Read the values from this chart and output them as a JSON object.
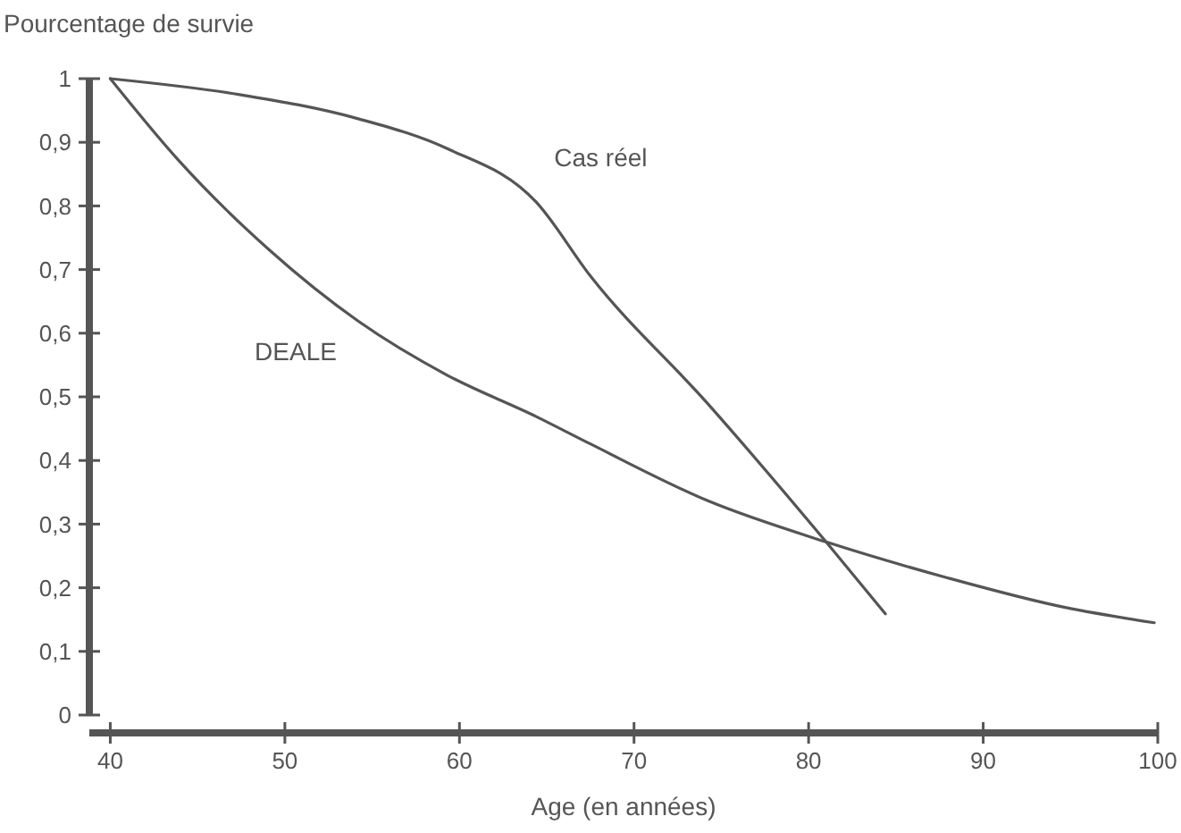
{
  "chart_data": {
    "type": "line",
    "ylabel": "Pourcentage de survie",
    "xlabel": "Age (en années)",
    "xlim": [
      38.8,
      100
    ],
    "xticks": [
      40,
      50,
      60,
      70,
      80,
      90,
      100
    ],
    "ylim": [
      0,
      1
    ],
    "yticks": [
      0,
      {
        "value": 0.1,
        "label": "0,1"
      },
      {
        "value": 0.2,
        "label": "0,2"
      },
      {
        "value": 0.3,
        "label": "0,3"
      },
      {
        "value": 0.4,
        "label": "0,4"
      },
      {
        "value": 0.5,
        "label": "0,5"
      },
      {
        "value": 0.6,
        "label": "0,6"
      },
      {
        "value": 0.7,
        "label": "0,7"
      },
      {
        "value": 0.8,
        "label": "0,8"
      },
      {
        "value": 0.9,
        "label": "0,9"
      },
      1
    ],
    "grid": false,
    "legend": false,
    "marker": "none",
    "line_style": "solid",
    "series": [
      {
        "name": "Cas réel",
        "color": "#555555",
        "x": [
          40,
          47.4,
          54.2,
          59.3,
          64.4,
          67.5,
          74.2,
          81.0,
          84.4
        ],
        "values": [
          1,
          0.975,
          0.937,
          0.89,
          0.806,
          0.69,
          0.49,
          0.272,
          0.159
        ]
      },
      {
        "name": "DEALE",
        "color": "#555555",
        "x": [
          40,
          43.9,
          49.1,
          54.2,
          59.3,
          64.4,
          67.5,
          74.2,
          81.0,
          87.9,
          94.7,
          99.8
        ],
        "values": [
          1,
          0.872,
          0.731,
          0.619,
          0.534,
          0.469,
          0.426,
          0.337,
          0.272,
          0.216,
          0.169,
          0.145
        ]
      }
    ]
  }
}
